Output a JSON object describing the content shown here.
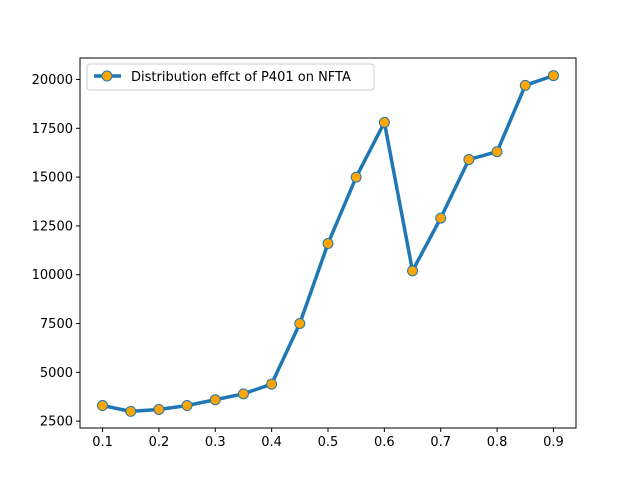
{
  "chart_data": {
    "type": "line",
    "title": "",
    "xlabel": "",
    "ylabel": "",
    "xlim": [
      0.06,
      0.94
    ],
    "ylim": [
      2150,
      21100
    ],
    "x_ticks": [
      "0.1",
      "0.2",
      "0.3",
      "0.4",
      "0.5",
      "0.6",
      "0.7",
      "0.8",
      "0.9"
    ],
    "y_ticks": [
      "2500",
      "5000",
      "7500",
      "10000",
      "12500",
      "15000",
      "17500",
      "20000"
    ],
    "legend_position": "top-left",
    "grid": false,
    "series": [
      {
        "name": "Distribution effct of P401 on NFTA",
        "color": "#1f77b4",
        "marker_color": "#ffa500",
        "x": [
          0.1,
          0.15,
          0.2,
          0.25,
          0.3,
          0.35,
          0.4,
          0.45,
          0.5,
          0.55,
          0.6,
          0.65,
          0.7,
          0.75,
          0.8,
          0.85,
          0.9
        ],
        "y": [
          3300,
          3000,
          3100,
          3300,
          3600,
          3900,
          4400,
          7500,
          11600,
          15000,
          17800,
          10200,
          12900,
          15900,
          16300,
          19700,
          20200
        ]
      }
    ]
  }
}
